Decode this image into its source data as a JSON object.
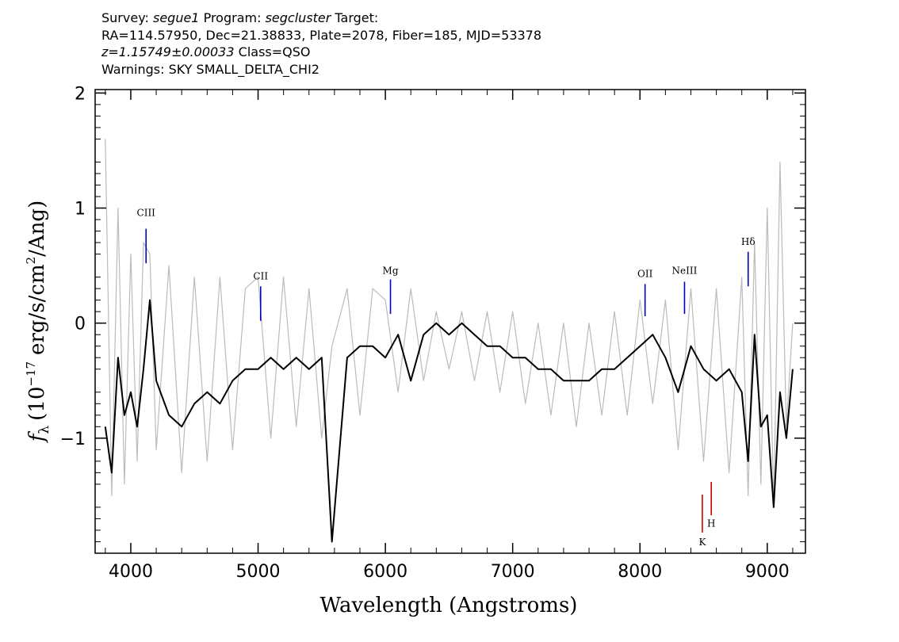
{
  "header": {
    "line1": {
      "survey_label": "Survey:",
      "survey": "segue1",
      "program_label": "Program:",
      "program": "segcluster",
      "target_label": "Target:"
    },
    "line2": "RA=114.57950, Dec=21.38833, Plate=2078, Fiber=185, MJD=53378",
    "line3": {
      "z": "z=1.15749±0.00033",
      "class": "Class=QSO"
    },
    "line4": "Warnings: SKY SMALL_DELTA_CHI2"
  },
  "chart_data": {
    "type": "line",
    "title": "",
    "xlabel": "Wavelength (Angstroms)",
    "ylabel_parts": {
      "f": "f",
      "sub": "λ",
      "pre": "(10",
      "exp": "−17",
      "mid": "erg/s/cm",
      "exp2": "2",
      "post": "/Ang)"
    },
    "xlim": [
      3720,
      9300
    ],
    "ylim": [
      -2.0,
      2.03
    ],
    "x_ticks": [
      4000,
      5000,
      6000,
      7000,
      8000,
      9000
    ],
    "x_tick_labels": [
      "4000",
      "5000",
      "6000",
      "7000",
      "8000",
      "9000"
    ],
    "y_ticks": [
      -1,
      0,
      1,
      2
    ],
    "y_tick_labels": [
      "−1",
      "0",
      "1",
      "2"
    ],
    "grid": false,
    "series": [
      {
        "name": "",
        "color": "#000000",
        "x": [
          3800,
          3850,
          3900,
          3950,
          4000,
          4050,
          4100,
          4150,
          4200,
          4300,
          4400,
          4500,
          4600,
          4700,
          4800,
          4900,
          5000,
          5100,
          5200,
          5300,
          5400,
          5500,
          5580,
          5700,
          5800,
          5900,
          6000,
          6100,
          6200,
          6300,
          6400,
          6500,
          6600,
          6700,
          6800,
          6900,
          7000,
          7100,
          7200,
          7300,
          7400,
          7500,
          7600,
          7700,
          7800,
          7900,
          8000,
          8100,
          8200,
          8300,
          8400,
          8500,
          8600,
          8700,
          8800,
          8850,
          8900,
          8950,
          9000,
          9050,
          9100,
          9150,
          9200
        ],
        "y": [
          -0.9,
          -1.3,
          -0.3,
          -0.8,
          -0.6,
          -0.9,
          -0.4,
          0.2,
          -0.5,
          -0.8,
          -0.9,
          -0.7,
          -0.6,
          -0.7,
          -0.5,
          -0.4,
          -0.4,
          -0.3,
          -0.4,
          -0.3,
          -0.4,
          -0.3,
          -1.9,
          -0.3,
          -0.2,
          -0.2,
          -0.3,
          -0.1,
          -0.5,
          -0.1,
          0.0,
          -0.1,
          0.0,
          -0.1,
          -0.2,
          -0.2,
          -0.3,
          -0.3,
          -0.4,
          -0.4,
          -0.5,
          -0.5,
          -0.5,
          -0.4,
          -0.4,
          -0.3,
          -0.2,
          -0.1,
          -0.3,
          -0.6,
          -0.2,
          -0.4,
          -0.5,
          -0.4,
          -0.6,
          -1.2,
          -0.1,
          -0.9,
          -0.8,
          -1.6,
          -0.6,
          -1.0,
          -0.4
        ]
      },
      {
        "name": "",
        "color": "#bbbbbb",
        "x": [
          3800,
          3850,
          3900,
          3950,
          4000,
          4050,
          4100,
          4150,
          4200,
          4300,
          4400,
          4500,
          4600,
          4700,
          4800,
          4900,
          5000,
          5100,
          5200,
          5300,
          5400,
          5500,
          5580,
          5700,
          5800,
          5900,
          6000,
          6100,
          6200,
          6300,
          6400,
          6500,
          6600,
          6700,
          6800,
          6900,
          7000,
          7100,
          7200,
          7300,
          7400,
          7500,
          7600,
          7700,
          7800,
          7900,
          8000,
          8100,
          8200,
          8300,
          8400,
          8500,
          8600,
          8700,
          8800,
          8850,
          8900,
          8950,
          9000,
          9050,
          9100,
          9150,
          9200
        ],
        "y": [
          1.6,
          -1.5,
          1.0,
          -1.4,
          0.6,
          -1.2,
          0.7,
          0.6,
          -1.1,
          0.5,
          -1.3,
          0.4,
          -1.2,
          0.4,
          -1.1,
          0.3,
          0.4,
          -1.0,
          0.4,
          -0.9,
          0.3,
          -1.0,
          -0.2,
          0.3,
          -0.8,
          0.3,
          0.2,
          -0.6,
          0.3,
          -0.5,
          0.1,
          -0.4,
          0.1,
          -0.5,
          0.1,
          -0.6,
          0.1,
          -0.7,
          0.0,
          -0.8,
          0.0,
          -0.9,
          0.0,
          -0.8,
          0.1,
          -0.8,
          0.2,
          -0.7,
          0.2,
          -1.1,
          0.3,
          -1.2,
          0.3,
          -1.3,
          0.4,
          -1.5,
          0.7,
          -1.4,
          1.0,
          -1.6,
          1.4,
          -0.9,
          0.0
        ]
      }
    ],
    "line_markers": [
      {
        "label": "CIII",
        "x": 4120,
        "y_from": 0.52,
        "y_to": 0.82,
        "color": "#0000cc",
        "label_y": 0.93
      },
      {
        "label": "CII",
        "x": 5020,
        "y_from": 0.02,
        "y_to": 0.32,
        "color": "#0000cc",
        "label_y": 0.38
      },
      {
        "label": "Mg",
        "x": 6040,
        "y_from": 0.08,
        "y_to": 0.38,
        "color": "#0000cc",
        "label_y": 0.43
      },
      {
        "label": "OII",
        "x": 8040,
        "y_from": 0.06,
        "y_to": 0.34,
        "color": "#0000cc",
        "label_y": 0.4
      },
      {
        "label": "NeIII",
        "x": 8350,
        "y_from": 0.08,
        "y_to": 0.36,
        "color": "#0000cc",
        "label_y": 0.43
      },
      {
        "label": "Hδ",
        "x": 8850,
        "y_from": 0.32,
        "y_to": 0.62,
        "color": "#0000cc",
        "label_y": 0.68
      },
      {
        "label": "K",
        "x": 8490,
        "y_from": -1.82,
        "y_to": -1.49,
        "color": "#cc0000",
        "label_y": -1.93
      },
      {
        "label": "H",
        "x": 8560,
        "y_from": -1.67,
        "y_to": -1.38,
        "color": "#cc0000",
        "label_y": -1.77
      }
    ]
  }
}
